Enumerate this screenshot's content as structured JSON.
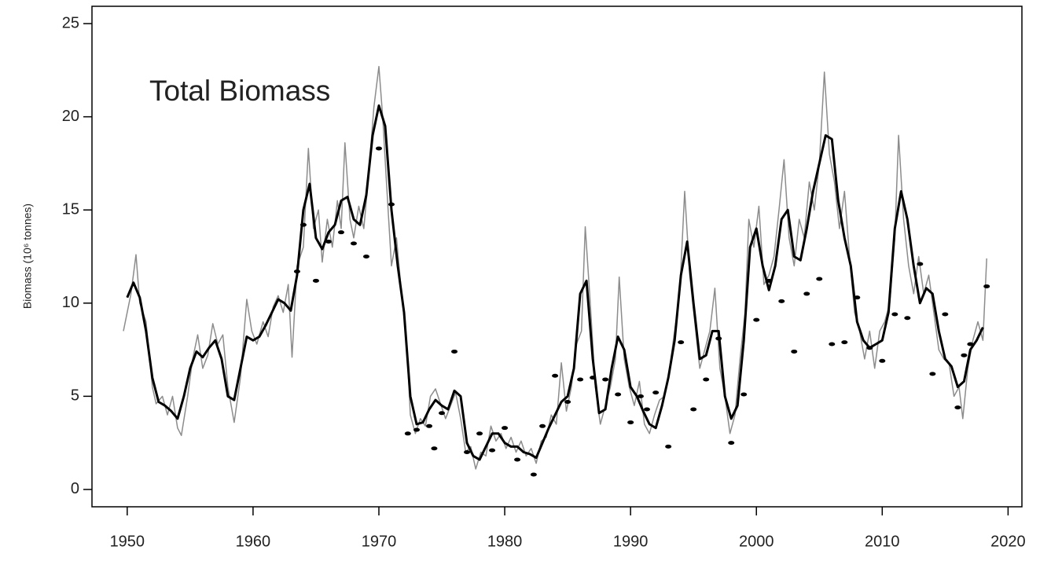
{
  "chart_data": {
    "type": "line",
    "annotation": "Total Biomass",
    "y_label": "Biomass (10⁶ tonnes)",
    "xlim": [
      1947.2,
      2021.1
    ],
    "ylim": [
      -0.93,
      25.93
    ],
    "xticks": [
      1950,
      1960,
      1970,
      1980,
      1990,
      2000,
      2010,
      2020
    ],
    "yticks": [
      0,
      5,
      10,
      15,
      20,
      25
    ],
    "series": [
      {
        "kind": "line",
        "color": "#8c8c8c",
        "width": 1.5,
        "x": [
          1949.7,
          1950.3,
          1950.7,
          1951,
          1951.5,
          1952,
          1952.3,
          1952.8,
          1953.2,
          1953.6,
          1954,
          1954.3,
          1954.8,
          1955.2,
          1955.6,
          1956,
          1956.4,
          1956.8,
          1957.2,
          1957.6,
          1958,
          1958.5,
          1959,
          1959.5,
          1959.9,
          1960.3,
          1960.8,
          1961.2,
          1961.6,
          1962,
          1962.4,
          1962.8,
          1963.1,
          1963.5,
          1964,
          1964.4,
          1964.8,
          1965.2,
          1965.5,
          1965.9,
          1966.3,
          1966.7,
          1967,
          1967.3,
          1967.7,
          1968,
          1968.4,
          1968.8,
          1969.2,
          1969.6,
          1970,
          1970.3,
          1970.6,
          1971,
          1971.4,
          1971.8,
          1972.2,
          1972.5,
          1972.9,
          1973.3,
          1973.7,
          1974.1,
          1974.5,
          1974.9,
          1975.3,
          1975.7,
          1976.1,
          1976.5,
          1976.9,
          1977.3,
          1977.7,
          1978.1,
          1978.5,
          1978.9,
          1979.3,
          1979.7,
          1980.1,
          1980.5,
          1980.9,
          1981.3,
          1981.7,
          1982.1,
          1982.5,
          1982.9,
          1983.3,
          1983.7,
          1984.1,
          1984.5,
          1984.9,
          1985.3,
          1985.7,
          1986.1,
          1986.4,
          1986.8,
          1987.2,
          1987.6,
          1988,
          1988.4,
          1988.8,
          1989.1,
          1989.5,
          1989.9,
          1990.3,
          1990.7,
          1991.1,
          1991.5,
          1991.9,
          1992.3,
          1992.7,
          1993.1,
          1993.5,
          1993.9,
          1994.3,
          1994.7,
          1995.1,
          1995.5,
          1995.9,
          1996.3,
          1996.7,
          1997.1,
          1997.5,
          1997.9,
          1998.3,
          1998.7,
          1999.1,
          1999.4,
          1999.8,
          2000.2,
          2000.6,
          2001,
          2001.4,
          2001.8,
          2002.2,
          2002.6,
          2003,
          2003.4,
          2003.8,
          2004.2,
          2004.6,
          2005,
          2005.4,
          2005.8,
          2006.2,
          2006.6,
          2007,
          2007.4,
          2007.8,
          2008.2,
          2008.6,
          2009,
          2009.4,
          2009.8,
          2010.2,
          2010.6,
          2011,
          2011.3,
          2011.7,
          2012.1,
          2012.5,
          2012.9,
          2013.3,
          2013.7,
          2014.1,
          2014.5,
          2014.9,
          2015.3,
          2015.7,
          2016.1,
          2016.4,
          2016.8,
          2017.2,
          2017.6,
          2018,
          2018.3
        ],
        "values": [
          8.5,
          10.5,
          12.6,
          10.0,
          9.0,
          5.5,
          4.6,
          5.0,
          4.0,
          5.0,
          3.3,
          2.9,
          5.0,
          7.0,
          8.3,
          6.5,
          7.2,
          8.9,
          7.8,
          8.3,
          5.5,
          3.6,
          6.0,
          10.2,
          8.5,
          7.8,
          9.0,
          8.2,
          9.8,
          10.4,
          9.5,
          11.0,
          7.1,
          12.0,
          13.0,
          18.3,
          14.0,
          15.0,
          12.2,
          14.5,
          13.0,
          15.5,
          14.0,
          18.6,
          14.5,
          13.5,
          15.2,
          14.0,
          17.0,
          20.5,
          22.7,
          20.0,
          16.5,
          12.0,
          13.5,
          10.5,
          8.0,
          4.0,
          3.0,
          3.8,
          3.4,
          5.0,
          5.4,
          4.6,
          3.8,
          4.5,
          5.2,
          3.8,
          2.0,
          2.3,
          1.1,
          2.0,
          1.8,
          3.4,
          2.6,
          3.0,
          2.2,
          2.8,
          2.0,
          2.6,
          1.8,
          2.2,
          1.4,
          2.6,
          2.8,
          4.0,
          3.5,
          6.8,
          4.2,
          5.5,
          7.8,
          8.5,
          14.1,
          10.0,
          5.5,
          3.5,
          4.5,
          5.5,
          7.0,
          11.4,
          7.0,
          5.5,
          4.5,
          5.8,
          3.5,
          3.0,
          4.0,
          4.8,
          5.0,
          6.5,
          8.5,
          10.5,
          16.0,
          11.5,
          9.0,
          6.5,
          7.5,
          8.5,
          10.8,
          6.5,
          5.0,
          3.0,
          4.0,
          7.0,
          9.5,
          14.5,
          13.0,
          15.2,
          11.0,
          11.5,
          12.5,
          15.0,
          17.7,
          13.5,
          12.0,
          14.5,
          13.5,
          16.5,
          15.0,
          17.5,
          22.4,
          18.0,
          16.5,
          14.0,
          16.0,
          12.5,
          9.5,
          8.5,
          7.0,
          8.5,
          6.5,
          8.5,
          9.0,
          10.0,
          13.5,
          19.0,
          14.5,
          12.0,
          10.5,
          12.5,
          10.5,
          11.5,
          9.5,
          7.5,
          7.0,
          6.8,
          5.0,
          5.5,
          3.8,
          6.5,
          8.0,
          9.0,
          8.0,
          12.4
        ]
      },
      {
        "kind": "line",
        "color": "#000000",
        "width": 3,
        "x": [
          1950,
          1950.5,
          1951,
          1951.5,
          1952,
          1952.5,
          1953,
          1953.5,
          1954,
          1954.5,
          1955,
          1955.5,
          1956,
          1956.5,
          1957,
          1957.5,
          1958,
          1958.5,
          1959,
          1959.5,
          1960,
          1960.5,
          1961,
          1961.5,
          1962,
          1962.5,
          1963,
          1963.5,
          1964,
          1964.5,
          1965,
          1965.5,
          1966,
          1966.5,
          1967,
          1967.5,
          1968,
          1968.5,
          1969,
          1969.5,
          1970,
          1970.5,
          1971,
          1971.5,
          1972,
          1972.5,
          1973,
          1973.5,
          1974,
          1974.5,
          1975,
          1975.5,
          1976,
          1976.5,
          1977,
          1977.5,
          1978,
          1978.5,
          1979,
          1979.5,
          1980,
          1980.5,
          1981,
          1981.5,
          1982,
          1982.5,
          1983,
          1983.5,
          1984,
          1984.5,
          1985,
          1985.5,
          1986,
          1986.5,
          1987,
          1987.5,
          1988,
          1988.5,
          1989,
          1989.5,
          1990,
          1990.5,
          1991,
          1991.5,
          1992,
          1992.5,
          1993,
          1993.5,
          1994,
          1994.5,
          1995,
          1995.5,
          1996,
          1996.5,
          1997,
          1997.5,
          1998,
          1998.5,
          1999,
          1999.5,
          2000,
          2000.5,
          2001,
          2001.5,
          2002,
          2002.5,
          2003,
          2003.5,
          2004,
          2004.5,
          2005,
          2005.5,
          2006,
          2006.5,
          2007,
          2007.5,
          2008,
          2008.5,
          2009,
          2009.5,
          2010,
          2010.5,
          2011,
          2011.5,
          2012,
          2012.5,
          2013,
          2013.5,
          2014,
          2014.5,
          2015,
          2015.5,
          2016,
          2016.5,
          2017,
          2017.5,
          2018
        ],
        "values": [
          10.3,
          11.1,
          10.3,
          8.5,
          6.0,
          4.7,
          4.5,
          4.2,
          3.8,
          5.0,
          6.5,
          7.4,
          7.1,
          7.6,
          8.0,
          7.0,
          5.0,
          4.8,
          6.5,
          8.2,
          8.0,
          8.2,
          8.8,
          9.5,
          10.2,
          10.0,
          9.6,
          11.5,
          15.0,
          16.4,
          13.5,
          12.9,
          13.8,
          14.2,
          15.5,
          15.7,
          14.5,
          14.2,
          15.8,
          19.0,
          20.6,
          19.5,
          15.0,
          12.0,
          9.5,
          5.0,
          3.5,
          3.6,
          4.3,
          4.8,
          4.5,
          4.3,
          5.3,
          5.0,
          2.5,
          1.8,
          1.6,
          2.3,
          3.0,
          3.0,
          2.5,
          2.3,
          2.3,
          2.0,
          1.9,
          1.7,
          2.5,
          3.3,
          4.0,
          4.7,
          5.0,
          6.5,
          10.5,
          11.2,
          7.0,
          4.1,
          4.3,
          6.5,
          8.2,
          7.5,
          5.5,
          5.0,
          4.2,
          3.5,
          3.3,
          4.5,
          6.0,
          8.0,
          11.5,
          13.3,
          10.0,
          7.0,
          7.2,
          8.5,
          8.5,
          5.0,
          3.8,
          4.5,
          8.0,
          13.0,
          14.0,
          12.0,
          10.7,
          12.0,
          14.5,
          15.0,
          12.5,
          12.3,
          14.0,
          16.0,
          17.5,
          19.0,
          18.8,
          15.5,
          13.5,
          12.0,
          9.0,
          8.0,
          7.6,
          7.8,
          8.0,
          9.5,
          14.0,
          16.0,
          14.5,
          12.0,
          10.0,
          10.8,
          10.5,
          8.5,
          7.0,
          6.6,
          5.5,
          5.8,
          7.5,
          8.0,
          8.7
        ]
      },
      {
        "kind": "points",
        "color": "#000000",
        "width": 3,
        "x": [
          1963.5,
          1964,
          1965,
          1966,
          1967,
          1968,
          1969,
          1970,
          1971,
          1972.3,
          1973,
          1974,
          1974.4,
          1975,
          1976,
          1977,
          1978,
          1979,
          1980,
          1981,
          1982.3,
          1983,
          1984,
          1985,
          1986,
          1987,
          1988,
          1989,
          1990,
          1990.8,
          1991.3,
          1992,
          1993,
          1994,
          1995,
          1996,
          1997,
          1998,
          1999,
          2000,
          2001,
          2002,
          2003,
          2004,
          2005,
          2006,
          2007,
          2008,
          2009,
          2010,
          2011,
          2012,
          2013,
          2014,
          2015,
          2016,
          2016.5,
          2017,
          2018.3
        ],
        "values": [
          11.7,
          14.2,
          11.2,
          13.3,
          13.8,
          13.2,
          12.5,
          18.3,
          15.3,
          3.0,
          3.2,
          3.4,
          2.2,
          4.1,
          7.4,
          2.0,
          3.0,
          2.1,
          3.3,
          1.6,
          0.8,
          3.4,
          6.1,
          4.7,
          5.9,
          6.0,
          5.9,
          5.1,
          3.6,
          5.0,
          4.3,
          5.2,
          2.3,
          7.9,
          4.3,
          5.9,
          8.1,
          2.5,
          5.1,
          9.1,
          11.2,
          10.1,
          7.4,
          10.5,
          11.3,
          7.8,
          7.9,
          10.3,
          7.6,
          6.9,
          9.4,
          9.2,
          12.1,
          6.2,
          9.4,
          4.4,
          7.2,
          7.8,
          10.9
        ]
      }
    ]
  }
}
